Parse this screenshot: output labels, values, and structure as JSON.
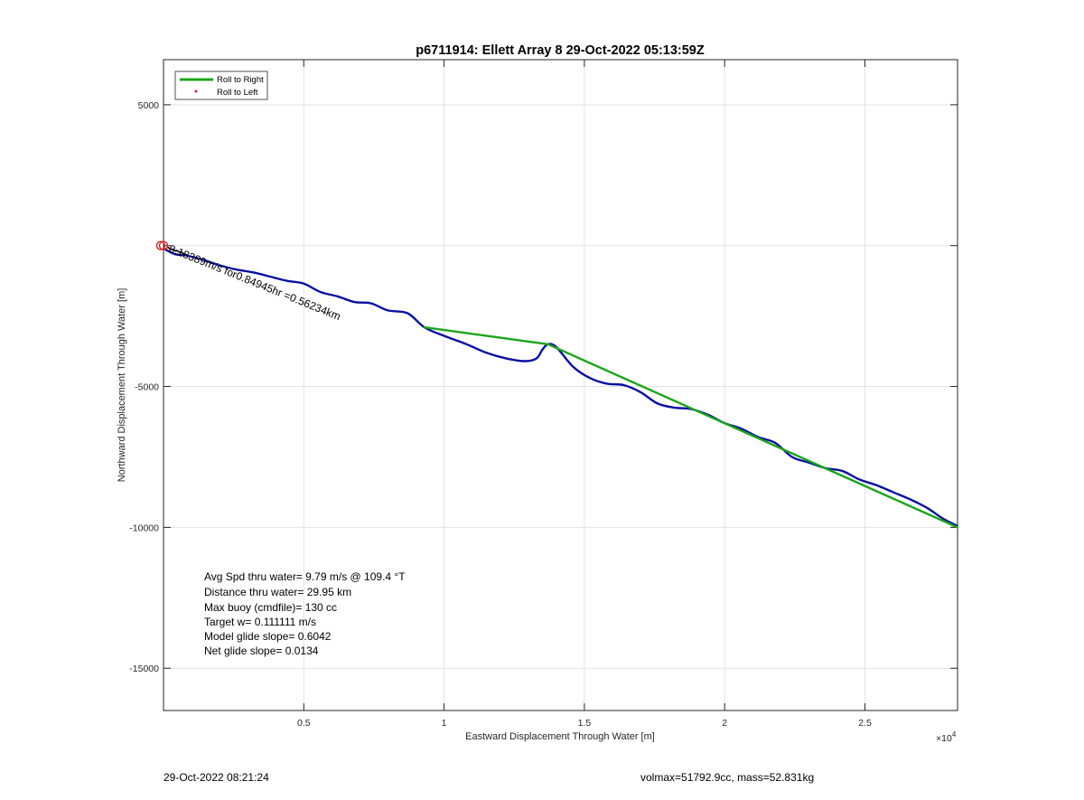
{
  "footer": {
    "timestamp": "29-Oct-2022 08:21:24",
    "volmax": "volmax=51792.9cc, mass=52.831kg"
  },
  "info_box": [
    "Avg Spd thru water=  9.79 m/s @ 109.4 °T",
    "Distance thru water= 29.95 km",
    "Max buoy (cmdfile)= 130 cc",
    "Target w= 0.111111 m/s",
    "Model glide slope= 0.6042",
    "Net glide slope= 0.0134"
  ],
  "chart_data": {
    "type": "line",
    "title": "p6711914: Ellett Array 8 29-Oct-2022 05:13:59Z",
    "xlabel": "Eastward Displacement Through Water [m]",
    "ylabel": "Northward Displacement Through Water [m]",
    "x_exponent_label": "×10",
    "x_exponent_power": "4",
    "xlim": [
      0,
      28300
    ],
    "ylim": [
      -16500,
      6600
    ],
    "xticks": [
      5000,
      10000,
      15000,
      20000,
      25000
    ],
    "xtick_labels": [
      "0.5",
      "1",
      "1.5",
      "2",
      "2.5"
    ],
    "yticks": [
      -15000,
      -10000,
      -5000,
      0,
      5000
    ],
    "ytick_labels": [
      "-15000",
      "-10000",
      "-5000",
      "",
      "5000"
    ],
    "grid": true,
    "legend": {
      "position": "top-left",
      "entries": [
        "Roll to Right",
        "Roll to Left"
      ]
    },
    "annotation": "0.18389m/s for0.84945hr =0.56234km",
    "colors": {
      "track": "#0a10a0",
      "roll_right": "#1aa51a",
      "roll_left": "#dd2020",
      "start_marker": "#dd2020"
    },
    "series": [
      {
        "name": "Roll to Right",
        "x": [
          9300,
          13700,
          28300
        ],
        "y": [
          -2900,
          -3500,
          -10000
        ]
      },
      {
        "name": "Roll to Left",
        "x": [],
        "y": []
      }
    ],
    "track": {
      "x": [
        0,
        400,
        800,
        1400,
        2000,
        2600,
        3200,
        3800,
        4400,
        5000,
        5600,
        6200,
        6800,
        7400,
        8000,
        8700,
        9300,
        10000,
        10800,
        11500,
        12200,
        12900,
        13300,
        13500,
        13700,
        14000,
        14600,
        15200,
        15800,
        16400,
        17000,
        17600,
        18200,
        18800,
        19400,
        20000,
        20600,
        21200,
        21800,
        22400,
        23000,
        23600,
        24200,
        24800,
        25400,
        26000,
        26600,
        27200,
        27800,
        28300
      ],
      "y": [
        -100,
        -300,
        -350,
        -500,
        -700,
        -850,
        -950,
        -1100,
        -1250,
        -1350,
        -1650,
        -1800,
        -2000,
        -2050,
        -2300,
        -2400,
        -2900,
        -3200,
        -3500,
        -3800,
        -4000,
        -4100,
        -4000,
        -3700,
        -3500,
        -3600,
        -4300,
        -4700,
        -4900,
        -4950,
        -5200,
        -5600,
        -5750,
        -5800,
        -6000,
        -6300,
        -6500,
        -6800,
        -7000,
        -7500,
        -7700,
        -7900,
        -8000,
        -8300,
        -8500,
        -8750,
        -9000,
        -9300,
        -9700,
        -9950
      ]
    }
  }
}
